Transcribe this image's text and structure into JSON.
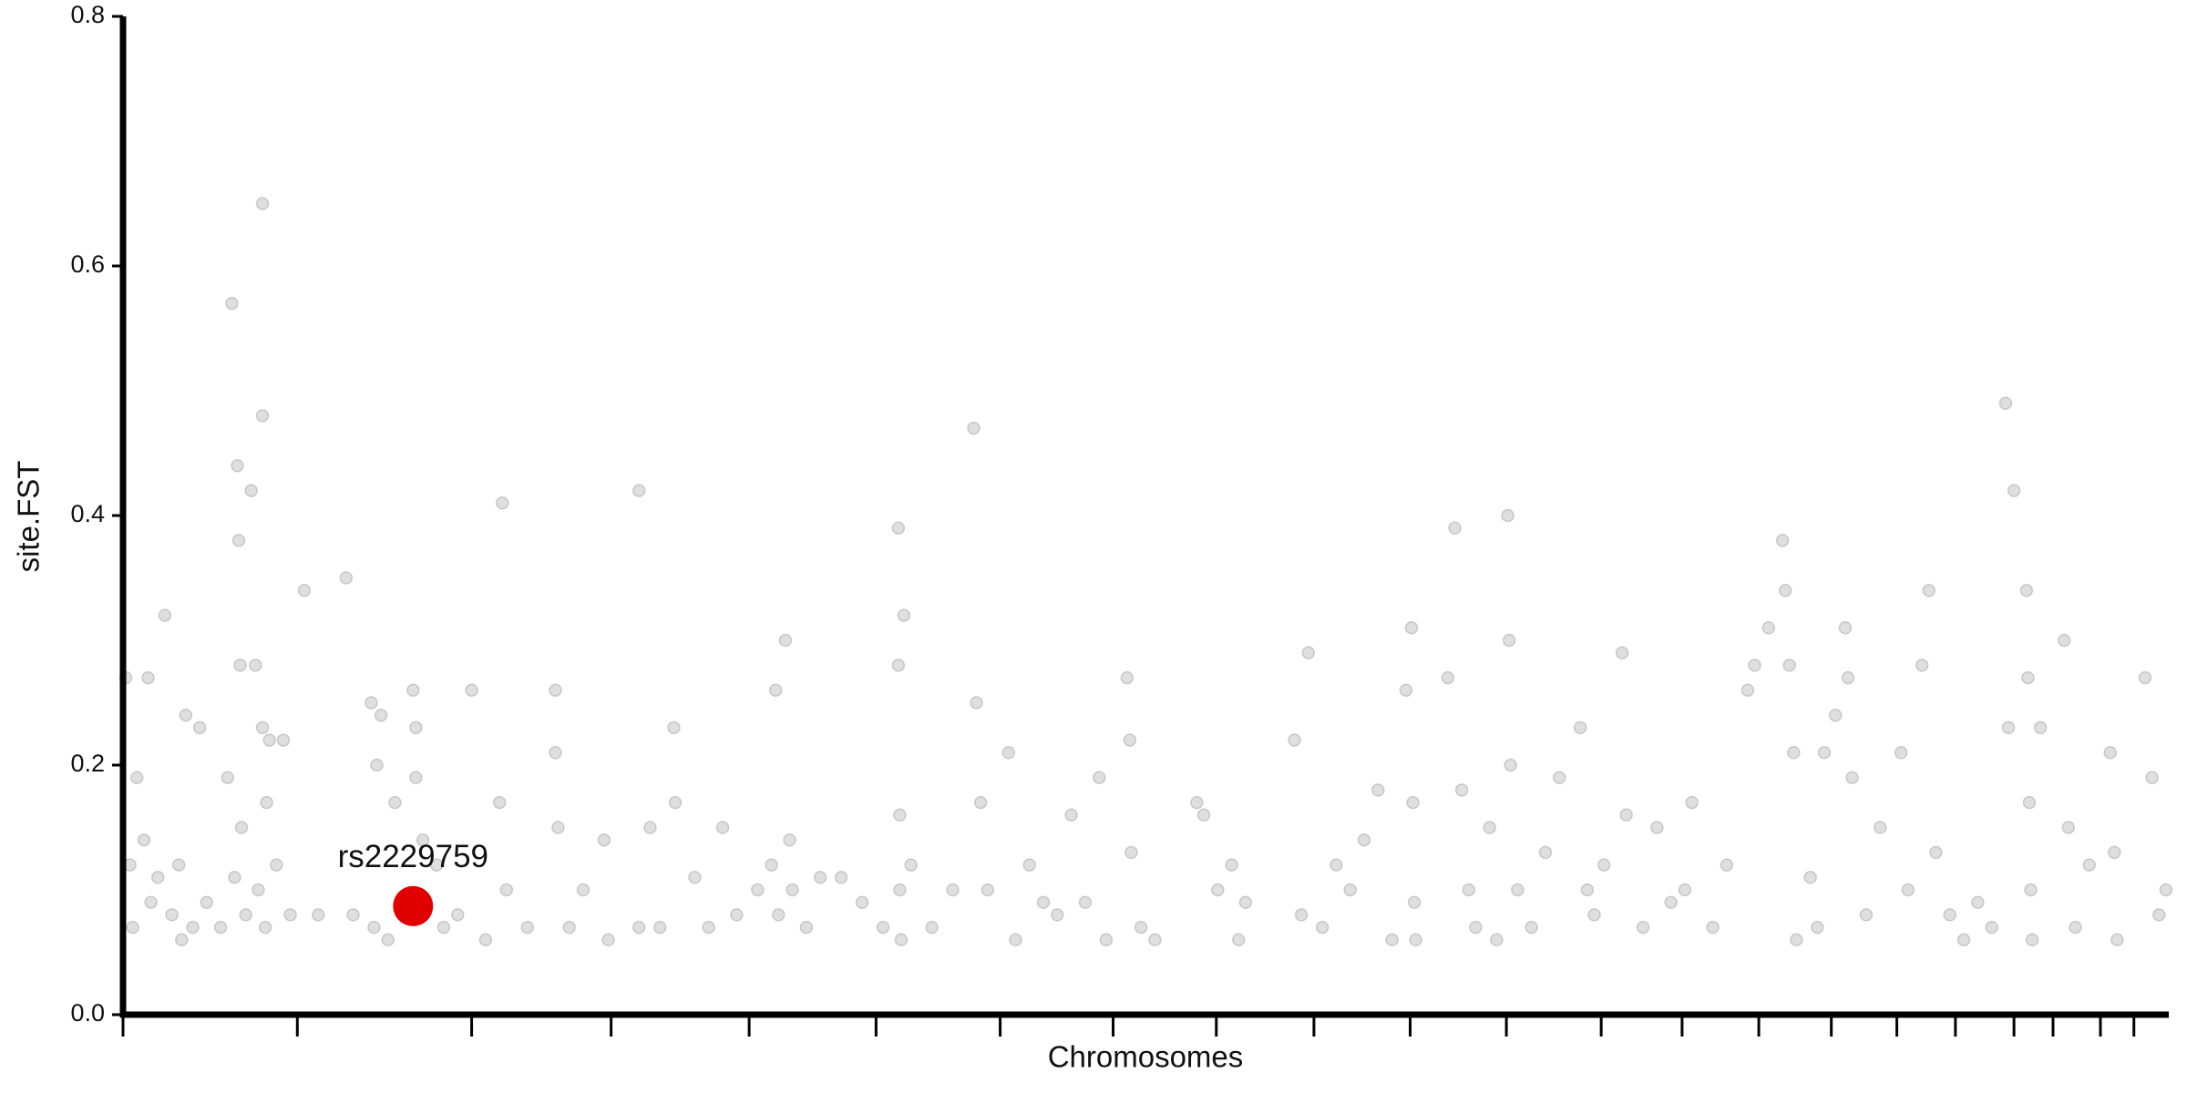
{
  "chart_data": {
    "type": "scatter",
    "x_label": "Chromosomes",
    "y_label": "site.FST",
    "xlim": [
      0,
      1467
    ],
    "ylim": [
      0,
      0.8
    ],
    "yticks": [
      {
        "value": 0,
        "label": "0.0"
      },
      0.2,
      0.4,
      0.6,
      0.8
    ],
    "xticks": [
      0,
      125,
      250,
      350,
      449,
      540,
      629,
      710,
      784,
      854,
      923,
      992,
      1060,
      1118,
      1173,
      1225,
      1272,
      1314,
      1356,
      1384,
      1418,
      1442
    ],
    "band_color": "#dedede",
    "points": {
      "color": "#808080",
      "x": [
        2,
        5,
        7,
        10,
        15,
        18,
        20,
        25,
        30,
        35,
        40,
        42,
        45,
        50,
        55,
        60,
        70,
        75,
        78,
        80,
        82,
        83,
        84,
        85,
        88,
        92,
        95,
        97,
        100,
        100,
        100,
        102,
        103,
        105,
        110,
        115,
        120,
        130,
        140,
        160,
        165,
        178,
        180,
        182,
        185,
        190,
        195,
        208,
        210,
        210,
        215,
        225,
        230,
        240,
        250,
        260,
        270,
        272,
        275,
        290,
        310,
        310,
        312,
        320,
        330,
        345,
        348,
        370,
        370,
        378,
        385,
        395,
        396,
        410,
        420,
        430,
        440,
        455,
        465,
        468,
        470,
        475,
        478,
        480,
        490,
        500,
        515,
        530,
        545,
        556,
        556,
        557,
        557,
        558,
        560,
        565,
        580,
        595,
        610,
        612,
        615,
        620,
        635,
        640,
        650,
        660,
        670,
        680,
        690,
        700,
        705,
        720,
        722,
        723,
        730,
        740,
        770,
        775,
        785,
        795,
        800,
        805,
        840,
        850,
        845,
        860,
        870,
        880,
        890,
        900,
        910,
        920,
        924,
        925,
        926,
        927,
        950,
        955,
        960,
        965,
        970,
        980,
        985,
        993,
        994,
        995,
        1000,
        1010,
        1020,
        1030,
        1045,
        1050,
        1055,
        1062,
        1075,
        1078,
        1090,
        1100,
        1110,
        1120,
        1125,
        1140,
        1150,
        1165,
        1170,
        1180,
        1190,
        1192,
        1195,
        1198,
        1200,
        1210,
        1215,
        1220,
        1228,
        1235,
        1237,
        1240,
        1250,
        1260,
        1275,
        1280,
        1290,
        1295,
        1300,
        1310,
        1320,
        1330,
        1340,
        1350,
        1352,
        1356,
        1365,
        1366,
        1367,
        1368,
        1369,
        1375,
        1392,
        1395,
        1400,
        1410,
        1425,
        1428,
        1430,
        1450,
        1455,
        1460,
        1465
      ],
      "y": [
        0.27,
        0.12,
        0.07,
        0.19,
        0.14,
        0.27,
        0.09,
        0.11,
        0.32,
        0.08,
        0.12,
        0.06,
        0.24,
        0.07,
        0.23,
        0.09,
        0.07,
        0.19,
        0.57,
        0.11,
        0.44,
        0.38,
        0.28,
        0.15,
        0.08,
        0.42,
        0.28,
        0.1,
        0.65,
        0.48,
        0.23,
        0.07,
        0.17,
        0.22,
        0.12,
        0.22,
        0.08,
        0.34,
        0.08,
        0.35,
        0.08,
        0.25,
        0.07,
        0.2,
        0.24,
        0.06,
        0.17,
        0.26,
        0.23,
        0.19,
        0.14,
        0.12,
        0.07,
        0.08,
        0.26,
        0.06,
        0.17,
        0.41,
        0.1,
        0.07,
        0.26,
        0.21,
        0.15,
        0.07,
        0.1,
        0.14,
        0.06,
        0.42,
        0.07,
        0.15,
        0.07,
        0.23,
        0.17,
        0.11,
        0.07,
        0.15,
        0.08,
        0.1,
        0.12,
        0.26,
        0.08,
        0.3,
        0.14,
        0.1,
        0.07,
        0.11,
        0.11,
        0.09,
        0.07,
        0.39,
        0.28,
        0.16,
        0.1,
        0.06,
        0.32,
        0.12,
        0.07,
        0.1,
        0.47,
        0.25,
        0.17,
        0.1,
        0.21,
        0.06,
        0.12,
        0.09,
        0.08,
        0.16,
        0.09,
        0.19,
        0.06,
        0.27,
        0.22,
        0.13,
        0.07,
        0.06,
        0.17,
        0.16,
        0.1,
        0.12,
        0.06,
        0.09,
        0.22,
        0.29,
        0.08,
        0.07,
        0.12,
        0.1,
        0.14,
        0.18,
        0.06,
        0.26,
        0.31,
        0.17,
        0.09,
        0.06,
        0.27,
        0.39,
        0.18,
        0.1,
        0.07,
        0.15,
        0.06,
        0.4,
        0.3,
        0.2,
        0.1,
        0.07,
        0.13,
        0.19,
        0.23,
        0.1,
        0.08,
        0.12,
        0.29,
        0.16,
        0.07,
        0.15,
        0.09,
        0.1,
        0.17,
        0.07,
        0.12,
        0.26,
        0.28,
        0.31,
        0.38,
        0.34,
        0.28,
        0.21,
        0.06,
        0.11,
        0.07,
        0.21,
        0.24,
        0.31,
        0.27,
        0.19,
        0.08,
        0.15,
        0.21,
        0.1,
        0.28,
        0.34,
        0.13,
        0.08,
        0.06,
        0.09,
        0.07,
        0.49,
        0.23,
        0.42,
        0.34,
        0.27,
        0.17,
        0.1,
        0.06,
        0.23,
        0.3,
        0.15,
        0.07,
        0.12,
        0.21,
        0.13,
        0.06,
        0.27,
        0.19,
        0.08,
        0.1
      ]
    },
    "highlight": {
      "label": "rs2229759",
      "x": 208,
      "y": 0.087,
      "color": "#e00000"
    }
  }
}
